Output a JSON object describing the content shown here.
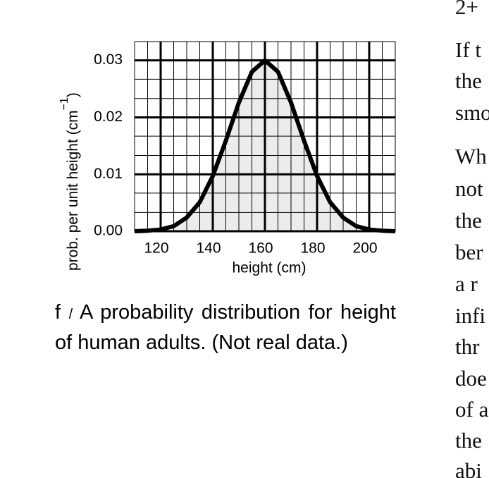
{
  "chart_data": {
    "type": "area",
    "xlabel": "height (cm)",
    "ylabel": "prob. per unit height (cm",
    "ylabel_sup": "−1",
    "ylabel_end": ")",
    "x": [
      110,
      115,
      120,
      125,
      130,
      135,
      140,
      145,
      150,
      155,
      160,
      165,
      170,
      175,
      180,
      185,
      190,
      195,
      200,
      205,
      210
    ],
    "values": [
      0.0,
      0.0001,
      0.0003,
      0.0009,
      0.0024,
      0.0051,
      0.0097,
      0.0159,
      0.0226,
      0.028,
      0.03,
      0.028,
      0.0226,
      0.0159,
      0.0097,
      0.0051,
      0.0024,
      0.0009,
      0.0003,
      0.0001,
      0.0
    ],
    "color": "#000000",
    "fill": "#ececec",
    "xlim": [
      110,
      210
    ],
    "ylim": [
      0,
      0.0333
    ],
    "xticks": [
      120,
      140,
      160,
      180,
      200
    ],
    "yticks": [
      {
        "value": 0,
        "label": "0.00"
      },
      {
        "value": 0.01,
        "label": "0.01"
      },
      {
        "value": 0.02,
        "label": "0.02"
      },
      {
        "value": 0.03,
        "label": "0.03"
      }
    ],
    "x_minor_grid": [
      110,
      115,
      125,
      130,
      135,
      145,
      150,
      155,
      165,
      170,
      175,
      185,
      190,
      195,
      205,
      210
    ],
    "y_minor_grid": [
      0.0033,
      0.0067,
      0.0133,
      0.0167,
      0.0233,
      0.0267,
      0.0333
    ],
    "grid": true
  },
  "caption": {
    "label": "f",
    "separator": "/",
    "text": "A probability distribution for height of human adults. (Not real data.)"
  },
  "right_column": {
    "lines": [
      "2+",
      "If t",
      "the",
      "smo",
      "Wh",
      "not",
      "the",
      "ber",
      "a r",
      "infi",
      "thr",
      "doe",
      "of a",
      "the",
      "abi"
    ]
  }
}
